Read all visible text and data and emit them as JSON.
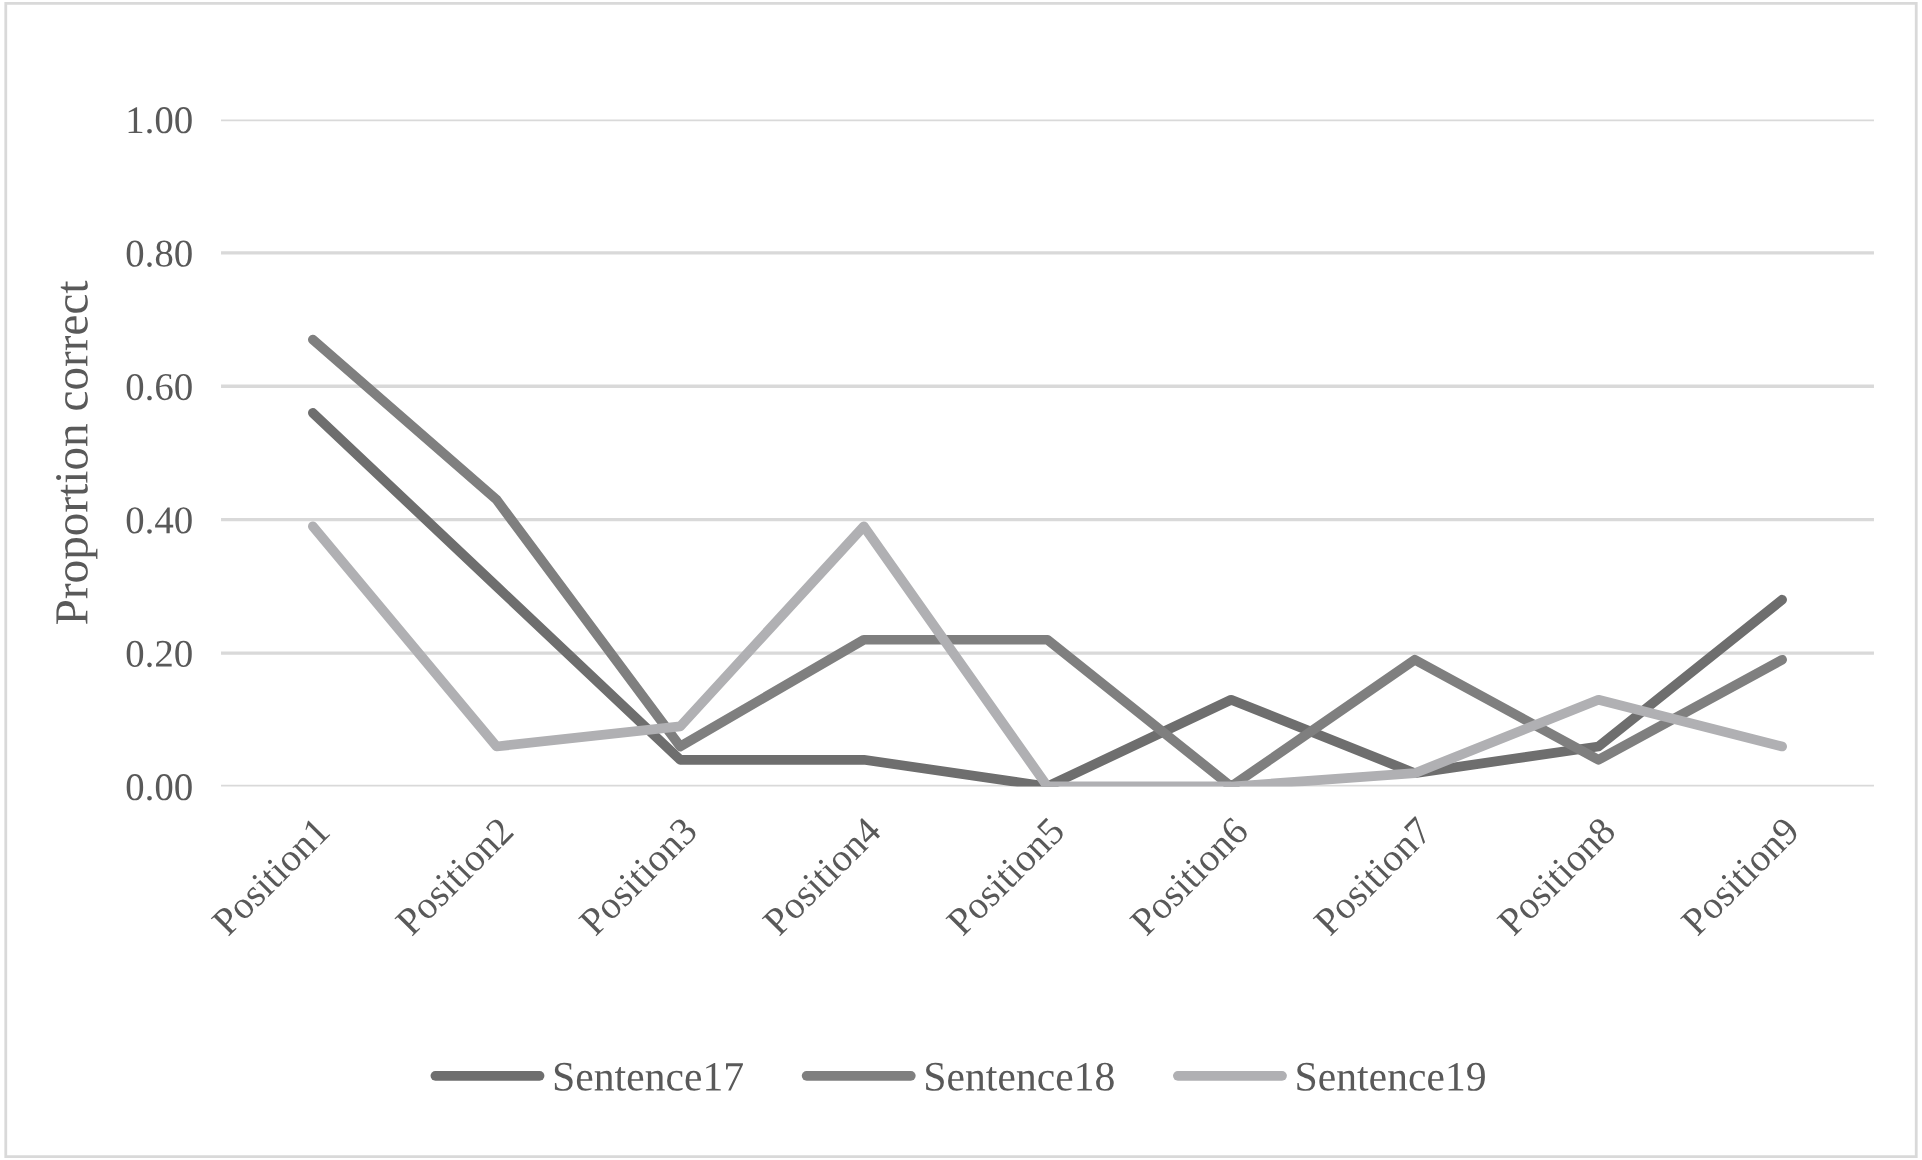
{
  "chart_data": {
    "type": "line",
    "ylabel": "Proportion correct",
    "categories": [
      "Position1",
      "Position2",
      "Position3",
      "Position4",
      "Position5",
      "Position6",
      "Position7",
      "Position8",
      "Position9"
    ],
    "series": [
      {
        "name": "Sentence17",
        "color": "#6e6e6e",
        "values": [
          0.56,
          0.3,
          0.04,
          0.04,
          0.0,
          0.13,
          0.02,
          0.06,
          0.28
        ]
      },
      {
        "name": "Sentence18",
        "color": "#7f7f7f",
        "values": [
          0.67,
          0.43,
          0.06,
          0.22,
          0.22,
          0.0,
          0.19,
          0.04,
          0.19
        ]
      },
      {
        "name": "Sentence19",
        "color": "#b0b0b3",
        "values": [
          0.39,
          0.06,
          0.09,
          0.39,
          0.0,
          0.0,
          0.02,
          0.13,
          0.06
        ]
      }
    ],
    "ylim": [
      0,
      1.0
    ],
    "yticks": [
      {
        "value": 0,
        "label": "0.00"
      },
      {
        "value": 0.2,
        "label": "0.20"
      },
      {
        "value": 0.4,
        "label": "0.40"
      },
      {
        "value": 0.6,
        "label": "0.60"
      },
      {
        "value": 0.8,
        "label": "0.80"
      },
      {
        "value": 1.0,
        "label": "1.00"
      }
    ],
    "grid": "y",
    "legend": "bottom",
    "marker": "none",
    "line_style": "solid"
  }
}
